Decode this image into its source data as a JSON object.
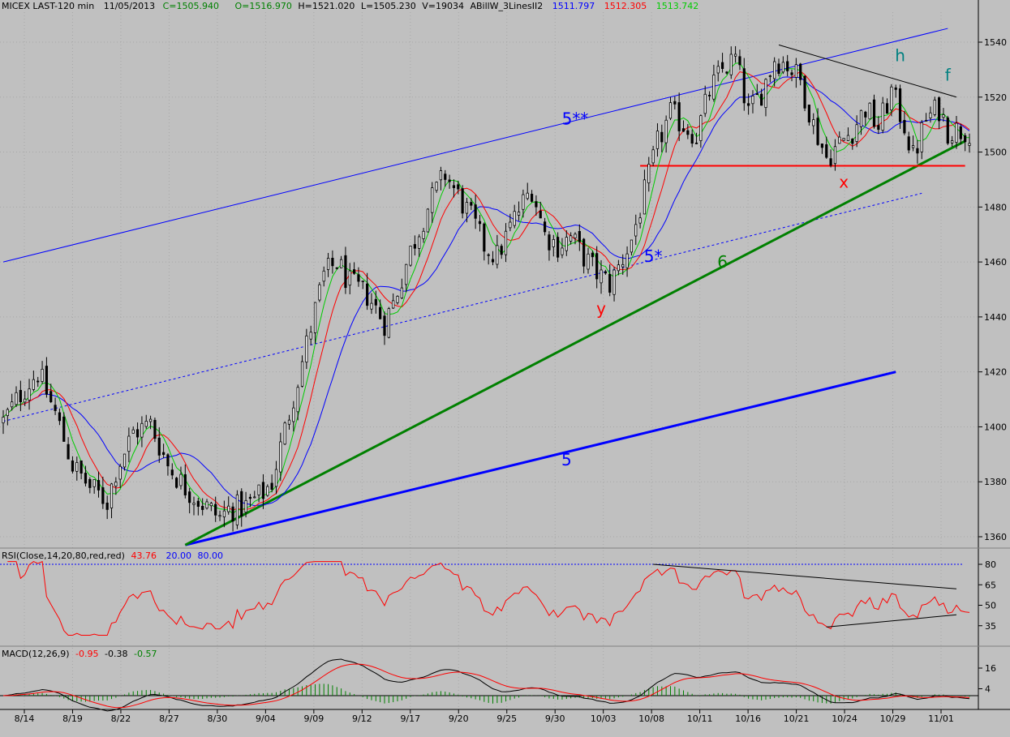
{
  "header": {
    "symbol": "MICEX LAST-120 min",
    "date": "11/05/2013",
    "close": "C=1505.940",
    "open": "O=1516.970",
    "high": "H=1521.020",
    "low": "L=1505.230",
    "volume": "V=19034",
    "indicator_name": "ABillW_3LinesII2",
    "indicator_values": [
      {
        "value": "1511.797",
        "color": "#0000ff"
      },
      {
        "value": "1512.305",
        "color": "#ff0000"
      },
      {
        "value": "1513.742",
        "color": "#00cc00"
      }
    ]
  },
  "rsi_header": {
    "name": "RSI(Close,14,20,80,red,red)",
    "value": "43.76",
    "lower": "20.00",
    "upper": "80.00"
  },
  "macd_header": {
    "name": "MACD(12,26,9)",
    "macd": "-0.95",
    "signal": "-0.38",
    "hist": "-0.57"
  },
  "chart_data": [
    {
      "type": "candlestick",
      "panel": "price",
      "y_ticks": [
        1360,
        1380,
        1400,
        1420,
        1440,
        1460,
        1480,
        1500,
        1520,
        1540
      ],
      "ylim": [
        1352,
        1548
      ],
      "x_ticks": [
        "8/14",
        "8/19",
        "8/22",
        "8/27",
        "8/30",
        "9/04",
        "9/09",
        "9/12",
        "9/17",
        "9/20",
        "9/25",
        "9/30",
        "10/03",
        "10/08",
        "10/11",
        "10/16",
        "10/21",
        "10/24",
        "10/29",
        "11/01"
      ],
      "close_path": [
        [
          0,
          1402
        ],
        [
          4,
          1412
        ],
        [
          8,
          1420
        ],
        [
          12,
          1405
        ],
        [
          16,
          1386
        ],
        [
          20,
          1378
        ],
        [
          24,
          1373
        ],
        [
          26,
          1384
        ],
        [
          30,
          1398
        ],
        [
          34,
          1401
        ],
        [
          38,
          1386
        ],
        [
          42,
          1378
        ],
        [
          46,
          1372
        ],
        [
          50,
          1367
        ],
        [
          52,
          1370
        ],
        [
          56,
          1371
        ],
        [
          60,
          1376
        ],
        [
          62,
          1380
        ],
        [
          66,
          1405
        ],
        [
          70,
          1430
        ],
        [
          74,
          1455
        ],
        [
          77,
          1460
        ],
        [
          80,
          1452
        ],
        [
          84,
          1448
        ],
        [
          88,
          1438
        ],
        [
          90,
          1445
        ],
        [
          94,
          1464
        ],
        [
          98,
          1480
        ],
        [
          102,
          1492
        ],
        [
          105,
          1484
        ],
        [
          108,
          1476
        ],
        [
          111,
          1466
        ],
        [
          114,
          1462
        ],
        [
          118,
          1476
        ],
        [
          122,
          1487
        ],
        [
          125,
          1470
        ],
        [
          128,
          1466
        ],
        [
          131,
          1469
        ],
        [
          134,
          1462
        ],
        [
          137,
          1456
        ],
        [
          140,
          1452
        ],
        [
          142,
          1458
        ],
        [
          145,
          1468
        ],
        [
          148,
          1485
        ],
        [
          151,
          1503
        ],
        [
          154,
          1514
        ],
        [
          157,
          1510
        ],
        [
          160,
          1506
        ],
        [
          163,
          1522
        ],
        [
          166,
          1530
        ],
        [
          169,
          1534
        ],
        [
          172,
          1514
        ],
        [
          175,
          1522
        ],
        [
          178,
          1534
        ],
        [
          181,
          1532
        ],
        [
          184,
          1526
        ],
        [
          187,
          1510
        ],
        [
          190,
          1498
        ],
        [
          193,
          1503
        ],
        [
          196,
          1508
        ],
        [
          199,
          1516
        ],
        [
          202,
          1509
        ],
        [
          205,
          1522
        ],
        [
          208,
          1510
        ],
        [
          210,
          1498
        ],
        [
          213,
          1512
        ],
        [
          216,
          1516
        ],
        [
          218,
          1508
        ]
      ],
      "indicator_lines": [
        {
          "name": "1511.797",
          "color": "#0000ff",
          "period": 17
        },
        {
          "name": "1512.305",
          "color": "#ff0000",
          "period": 9
        },
        {
          "name": "1513.742",
          "color": "#00cc00",
          "period": 5
        }
      ],
      "trendlines": [
        {
          "id": "5**",
          "points": [
            [
              0,
              1460
            ],
            [
              218,
              1545
            ]
          ],
          "color": "#0000ff",
          "style": "solid",
          "width": 1
        },
        {
          "id": "dashed-parallel",
          "points": [
            [
              0,
              1402
            ],
            [
              212,
              1485
            ]
          ],
          "color": "#0000ff",
          "style": "dashed",
          "width": 1
        },
        {
          "id": "5",
          "points": [
            [
              42,
              1357
            ],
            [
              206,
              1420
            ]
          ],
          "color": "#0000ff",
          "style": "solid",
          "width": 3
        },
        {
          "id": "6",
          "points": [
            [
              42,
              1357
            ],
            [
              222,
              1504
            ]
          ],
          "color": "#008000",
          "style": "solid",
          "width": 3
        },
        {
          "id": "x-support",
          "points": [
            [
              147,
              1495
            ],
            [
              222,
              1495
            ]
          ],
          "color": "#ff0000",
          "style": "solid",
          "width": 2
        },
        {
          "id": "top-resistance",
          "points": [
            [
              179,
              1539
            ],
            [
              220,
              1520
            ]
          ],
          "color": "#000000",
          "style": "solid",
          "width": 1
        }
      ],
      "annotations": [
        {
          "label": "5**",
          "at": [
            132,
            1510
          ],
          "color": "#0000ff"
        },
        {
          "label": "5*",
          "at": [
            150,
            1460
          ],
          "color": "#0000ff"
        },
        {
          "label": "6",
          "at": [
            166,
            1458
          ],
          "color": "#008000"
        },
        {
          "label": "5",
          "at": [
            130,
            1386
          ],
          "color": "#0000ff"
        },
        {
          "label": "y",
          "at": [
            138,
            1441
          ],
          "color": "#ff0000"
        },
        {
          "label": "x",
          "at": [
            194,
            1487
          ],
          "color": "#ff0000"
        },
        {
          "label": "h",
          "at": [
            207,
            1533
          ],
          "color": "#008080"
        },
        {
          "label": "f",
          "at": [
            218,
            1526
          ],
          "color": "#008080"
        }
      ]
    },
    {
      "type": "line",
      "panel": "rsi",
      "y_ticks": [
        35,
        50,
        65,
        80
      ],
      "ylim": [
        20,
        80
      ],
      "reference_lines": [
        20,
        80
      ],
      "series": [
        {
          "name": "RSI",
          "color": "#ff0000"
        }
      ],
      "trendlines": [
        {
          "points": [
            [
              150,
              80
            ],
            [
              220,
              62
            ]
          ],
          "color": "#000000"
        },
        {
          "points": [
            [
              190,
              34
            ],
            [
              220,
              43
            ]
          ],
          "color": "#000000"
        }
      ]
    },
    {
      "type": "line",
      "panel": "macd",
      "y_ticks": [
        4,
        16
      ],
      "ylim": [
        -6,
        24
      ],
      "series": [
        {
          "name": "MACD",
          "color": "#000000"
        },
        {
          "name": "Signal",
          "color": "#ff0000"
        }
      ],
      "histogram_color": "#008000"
    }
  ]
}
